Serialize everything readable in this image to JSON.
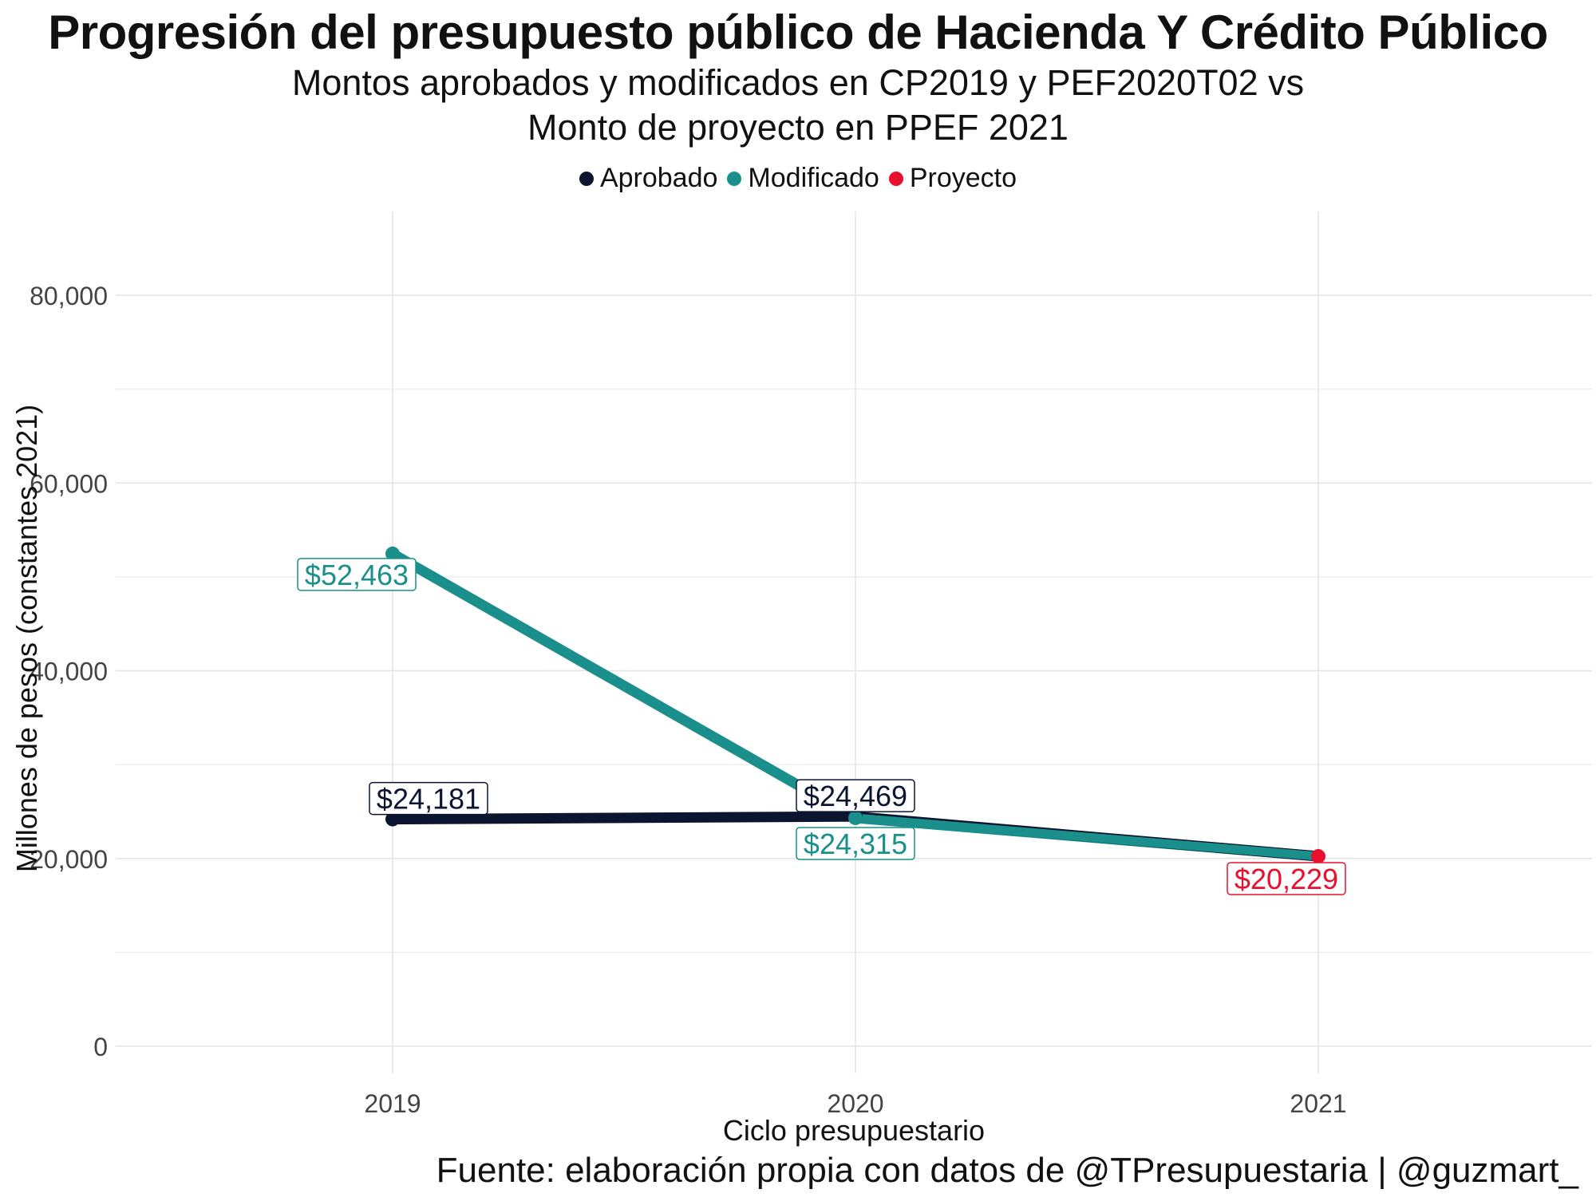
{
  "title": "Progresión del presupuesto público de Hacienda Y Crédito Público",
  "subtitle_line1": "Montos aprobados y modificados en CP2019 y PEF2020T02 vs",
  "subtitle_line2": "Monto de proyecto en PPEF 2021",
  "caption": "Fuente: elaboración propia con datos de @TPresupuestaria | @guzmart_",
  "chart_data": {
    "type": "line",
    "title": "Progresión del presupuesto público de Hacienda Y Crédito Público",
    "xlabel": "Ciclo presupuestario",
    "ylabel": "Millones de pesos (constantes 2021)",
    "categories": [
      "2019",
      "2020",
      "2021"
    ],
    "ylim": [
      0,
      87000
    ],
    "yticks": [
      0,
      20000,
      40000,
      60000,
      80000
    ],
    "ytick_labels": [
      "0",
      "20,000",
      "40,000",
      "60,000",
      "80,000"
    ],
    "grid": true,
    "legend_position": "top",
    "series": [
      {
        "name": "Aprobado",
        "color": "#0b1530",
        "x": [
          "2019",
          "2020",
          "2021"
        ],
        "values": [
          24181,
          24469,
          20229
        ],
        "labels": [
          "$24,181",
          "$24,469",
          null
        ],
        "point_marks": [
          true,
          true,
          false
        ]
      },
      {
        "name": "Modificado",
        "color": "#1a8f8c",
        "x": [
          "2019",
          "2020",
          "2021"
        ],
        "values": [
          52463,
          24315,
          20229
        ],
        "labels": [
          "$52,463",
          "$24,315",
          null
        ],
        "point_marks": [
          true,
          true,
          false
        ]
      },
      {
        "name": "Proyecto",
        "color": "#e8102c",
        "x": [
          "2021"
        ],
        "values": [
          20229
        ],
        "labels": [
          "$20,229"
        ],
        "point_marks": [
          true
        ]
      }
    ]
  }
}
